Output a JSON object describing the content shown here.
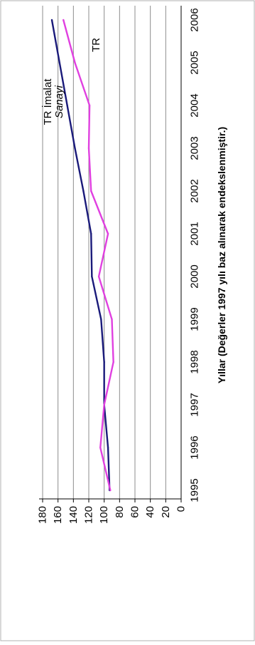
{
  "chart_data": {
    "type": "line",
    "xlabel": "Yıllar (Değerler 1997 yılı baz alınarak endekslenmiştir.)",
    "ylabel": "",
    "x": [
      "1995",
      "1996",
      "1997",
      "1998",
      "1999",
      "2000",
      "2001",
      "2002",
      "2003",
      "2004",
      "2005",
      "2006"
    ],
    "ylim": [
      0,
      180
    ],
    "yticks": [
      "180",
      "160",
      "140",
      "120",
      "100",
      "80",
      "60",
      "40",
      "20",
      "0"
    ],
    "grid": true,
    "orientation": "rotated-90-ccw",
    "series": [
      {
        "name": "TR İmalat Sanayi",
        "label_lines": [
          "TR İmalat",
          "Sanayi"
        ],
        "color": "#1a1a7a",
        "values": [
          93,
          95,
          100,
          100,
          104,
          116,
          117,
          127,
          138,
          148,
          158,
          168
        ]
      },
      {
        "name": "TR",
        "label_lines": [
          "TR"
        ],
        "color": "#e040e0",
        "values": [
          92,
          105,
          100,
          88,
          90,
          107,
          95,
          117,
          120,
          119,
          138,
          153
        ]
      }
    ]
  }
}
